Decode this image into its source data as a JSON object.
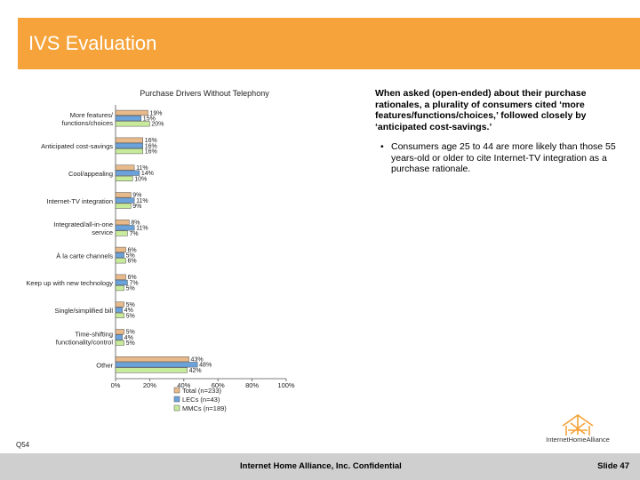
{
  "header": {
    "title": "IVS Evaluation"
  },
  "chart_data": {
    "type": "bar",
    "orientation": "horizontal",
    "title": "Purchase Drivers Without Telephony",
    "categories": [
      "More features/ functions/choices",
      "Anticipated cost-savings",
      "Cool/appealing",
      "Internet-TV integration",
      "Integrated/all-in-one service",
      "À la carte channels",
      "Keep up with new technology",
      "Single/simplified bill",
      "Time-shifting functionality/control",
      "Other"
    ],
    "series": [
      {
        "name": "Total (n=233)",
        "color": "#e8b98a",
        "values": [
          19,
          16,
          11,
          9,
          8,
          6,
          6,
          5,
          5,
          43
        ]
      },
      {
        "name": "LECs (n=43)",
        "color": "#6aa2dc",
        "values": [
          15,
          16,
          14,
          11,
          11,
          5,
          7,
          4,
          4,
          48
        ]
      },
      {
        "name": "MMCs (n=189)",
        "color": "#c7ea9b",
        "values": [
          20,
          16,
          10,
          9,
          7,
          6,
          5,
          5,
          5,
          42
        ]
      }
    ],
    "xlim": [
      0,
      100
    ],
    "xticks": [
      "0%",
      "20%",
      "40%",
      "60%",
      "80%",
      "100%"
    ],
    "legend_position": "bottom"
  },
  "commentary": {
    "main": "When asked (open-ended) about their purchase rationales, a plurality of consumers cited ‘more features/functions/choices,’ followed closely by ‘anticipated cost-savings.’",
    "bullet": "Consumers age 25 to 44 are more likely than those 55 years-old or older to cite Internet-TV integration as a purchase rationale."
  },
  "question_label": "Q54",
  "footer": {
    "text": "Internet Home Alliance, Inc. Confidential",
    "slide": "Slide 47"
  },
  "logo": {
    "text": "InternetHomeAlliance",
    "accent_color": "#f5a33a"
  }
}
